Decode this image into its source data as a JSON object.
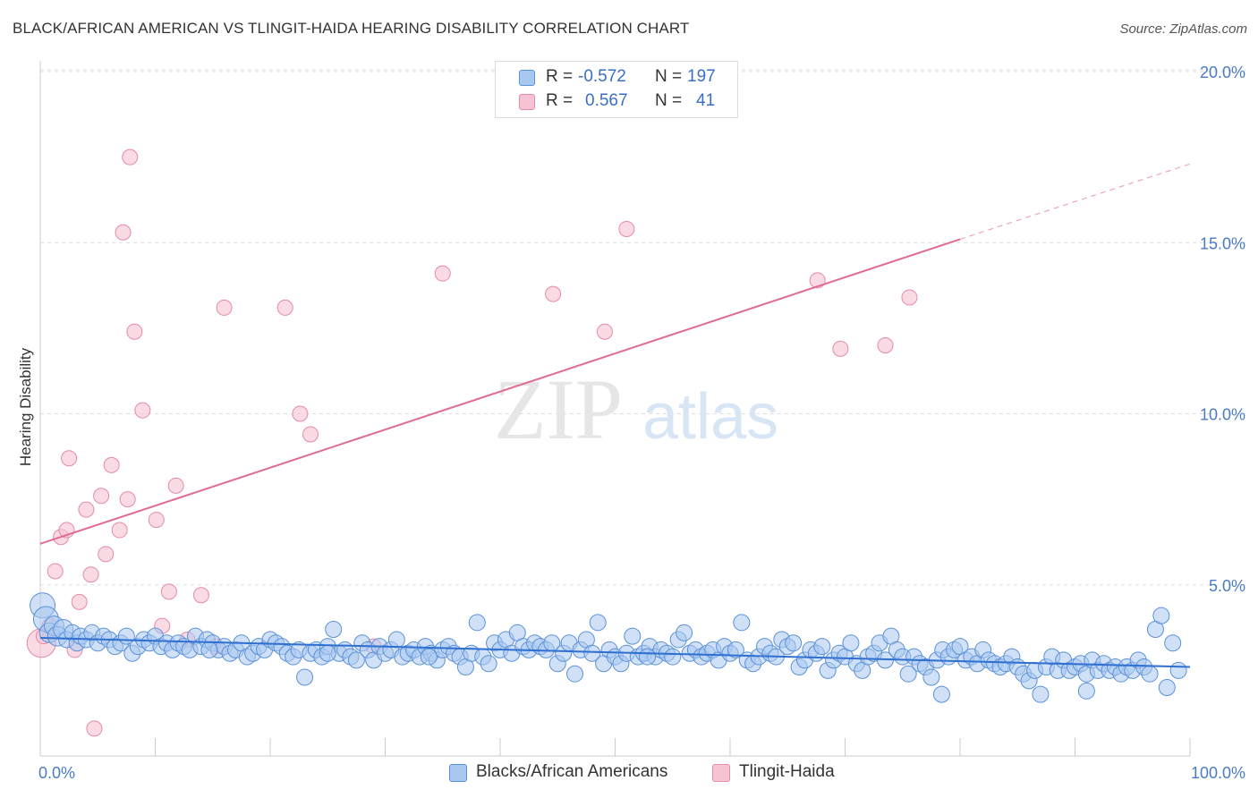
{
  "title": "BLACK/AFRICAN AMERICAN VS TLINGIT-HAIDA HEARING DISABILITY CORRELATION CHART",
  "source": "Source: ZipAtlas.com",
  "watermark": {
    "zip": "ZIP",
    "atlas": "atlas"
  },
  "legend": {
    "rows": [
      {
        "r_label": "R =",
        "r_value": "-0.572",
        "n_label": "N =",
        "n_value": "197"
      },
      {
        "r_label": "R =",
        "r_value": "0.567",
        "n_label": "N =",
        "n_value": "41"
      }
    ]
  },
  "bottom_legend": {
    "items": [
      {
        "label": "Blacks/African Americans"
      },
      {
        "label": "Tlingit-Haida"
      }
    ]
  },
  "colors": {
    "blue_fill": "#a9c8f0",
    "blue_stroke": "#5b91d8",
    "blue_line": "#2f6fd0",
    "pink_fill": "#f6c3d2",
    "pink_stroke": "#e58aa8",
    "pink_line": "#e06b94"
  },
  "chart_data": {
    "type": "scatter",
    "title": "BLACK/AFRICAN AMERICAN VS TLINGIT-HAIDA HEARING DISABILITY CORRELATION CHART",
    "xlabel": "",
    "ylabel": "Hearing Disability",
    "xlim": [
      0,
      100
    ],
    "ylim": [
      0,
      20
    ],
    "x_tick_labels": [
      "0.0%",
      "100.0%"
    ],
    "y_tick_labels": [
      "5.0%",
      "10.0%",
      "15.0%",
      "20.0%"
    ],
    "y_tick_values": [
      5,
      10,
      15,
      20
    ],
    "series": [
      {
        "name": "Blacks/African Americans",
        "R": -0.572,
        "N": 197,
        "trend": {
          "x0": 0,
          "y0": 3.45,
          "x1": 100,
          "y1": 2.6
        },
        "points": [
          [
            0.2,
            4.4
          ],
          [
            0.5,
            4.0
          ],
          [
            0.8,
            3.6
          ],
          [
            1.2,
            3.8
          ],
          [
            1.5,
            3.5
          ],
          [
            2.0,
            3.7
          ],
          [
            2.3,
            3.4
          ],
          [
            2.8,
            3.6
          ],
          [
            3.2,
            3.3
          ],
          [
            3.5,
            3.5
          ],
          [
            4.0,
            3.4
          ],
          [
            4.5,
            3.6
          ],
          [
            5.0,
            3.3
          ],
          [
            5.5,
            3.5
          ],
          [
            6.0,
            3.4
          ],
          [
            6.5,
            3.2
          ],
          [
            7.0,
            3.3
          ],
          [
            7.5,
            3.5
          ],
          [
            8.0,
            3.0
          ],
          [
            8.5,
            3.2
          ],
          [
            9.0,
            3.4
          ],
          [
            9.5,
            3.3
          ],
          [
            10.0,
            3.5
          ],
          [
            10.5,
            3.2
          ],
          [
            11.0,
            3.3
          ],
          [
            11.5,
            3.1
          ],
          [
            12.0,
            3.3
          ],
          [
            12.5,
            3.2
          ],
          [
            13.0,
            3.1
          ],
          [
            13.5,
            3.5
          ],
          [
            14.0,
            3.2
          ],
          [
            14.5,
            3.4
          ],
          [
            15.0,
            3.3
          ],
          [
            15.5,
            3.1
          ],
          [
            16.0,
            3.2
          ],
          [
            16.5,
            3.0
          ],
          [
            17.0,
            3.1
          ],
          [
            17.5,
            3.3
          ],
          [
            18.0,
            2.9
          ],
          [
            18.5,
            3.0
          ],
          [
            19.0,
            3.2
          ],
          [
            19.5,
            3.1
          ],
          [
            20.0,
            3.4
          ],
          [
            20.5,
            3.3
          ],
          [
            21.0,
            3.2
          ],
          [
            21.5,
            3.0
          ],
          [
            22.0,
            2.9
          ],
          [
            22.5,
            3.1
          ],
          [
            23.0,
            2.3
          ],
          [
            23.5,
            3.0
          ],
          [
            24.0,
            3.1
          ],
          [
            24.5,
            2.9
          ],
          [
            25.0,
            3.2
          ],
          [
            25.5,
            3.7
          ],
          [
            26.0,
            3.0
          ],
          [
            26.5,
            3.1
          ],
          [
            27.0,
            2.9
          ],
          [
            27.5,
            2.8
          ],
          [
            28.0,
            3.3
          ],
          [
            28.5,
            3.1
          ],
          [
            29.0,
            2.8
          ],
          [
            29.5,
            3.2
          ],
          [
            30.0,
            3.0
          ],
          [
            30.5,
            3.1
          ],
          [
            31.0,
            3.4
          ],
          [
            31.5,
            2.9
          ],
          [
            32.0,
            3.0
          ],
          [
            32.5,
            3.1
          ],
          [
            33.0,
            2.9
          ],
          [
            33.5,
            3.2
          ],
          [
            34.0,
            3.0
          ],
          [
            34.5,
            2.8
          ],
          [
            35.0,
            3.1
          ],
          [
            35.5,
            3.2
          ],
          [
            36.0,
            3.0
          ],
          [
            36.5,
            2.9
          ],
          [
            37.0,
            2.6
          ],
          [
            37.5,
            3.0
          ],
          [
            38.0,
            3.9
          ],
          [
            38.5,
            2.9
          ],
          [
            39.0,
            2.7
          ],
          [
            39.5,
            3.3
          ],
          [
            40.0,
            3.1
          ],
          [
            40.5,
            3.4
          ],
          [
            41.0,
            3.0
          ],
          [
            41.5,
            3.6
          ],
          [
            42.0,
            3.2
          ],
          [
            42.5,
            3.1
          ],
          [
            43.0,
            3.3
          ],
          [
            43.5,
            3.2
          ],
          [
            44.0,
            3.1
          ],
          [
            44.5,
            3.3
          ],
          [
            45.0,
            2.7
          ],
          [
            45.5,
            3.0
          ],
          [
            46.0,
            3.3
          ],
          [
            46.5,
            2.4
          ],
          [
            47.0,
            3.1
          ],
          [
            47.5,
            3.4
          ],
          [
            48.0,
            3.0
          ],
          [
            48.5,
            3.9
          ],
          [
            49.0,
            2.7
          ],
          [
            49.5,
            3.1
          ],
          [
            50.0,
            2.9
          ],
          [
            50.5,
            2.7
          ],
          [
            51.0,
            3.0
          ],
          [
            51.5,
            3.5
          ],
          [
            52.0,
            2.9
          ],
          [
            52.5,
            3.0
          ],
          [
            53.0,
            3.2
          ],
          [
            53.5,
            2.9
          ],
          [
            54.0,
            3.1
          ],
          [
            54.5,
            3.0
          ],
          [
            55.0,
            2.9
          ],
          [
            55.5,
            3.4
          ],
          [
            56.0,
            3.6
          ],
          [
            56.5,
            3.0
          ],
          [
            57.0,
            3.1
          ],
          [
            57.5,
            2.9
          ],
          [
            58.0,
            3.0
          ],
          [
            58.5,
            3.1
          ],
          [
            59.0,
            2.8
          ],
          [
            59.5,
            3.2
          ],
          [
            60.0,
            3.0
          ],
          [
            60.5,
            3.1
          ],
          [
            61.0,
            3.9
          ],
          [
            61.5,
            2.8
          ],
          [
            62.0,
            2.7
          ],
          [
            62.5,
            2.9
          ],
          [
            63.0,
            3.2
          ],
          [
            63.5,
            3.0
          ],
          [
            64.0,
            2.9
          ],
          [
            64.5,
            3.4
          ],
          [
            65.0,
            3.2
          ],
          [
            65.5,
            3.3
          ],
          [
            66.0,
            2.6
          ],
          [
            66.5,
            2.8
          ],
          [
            67.0,
            3.1
          ],
          [
            67.5,
            3.0
          ],
          [
            68.0,
            3.2
          ],
          [
            68.5,
            2.5
          ],
          [
            69.0,
            2.8
          ],
          [
            69.5,
            3.0
          ],
          [
            70.0,
            2.9
          ],
          [
            70.5,
            3.3
          ],
          [
            71.0,
            2.7
          ],
          [
            71.5,
            2.5
          ],
          [
            72.0,
            2.9
          ],
          [
            72.5,
            3.0
          ],
          [
            73.0,
            3.3
          ],
          [
            73.5,
            2.8
          ],
          [
            74.0,
            3.5
          ],
          [
            74.5,
            3.1
          ],
          [
            75.0,
            2.9
          ],
          [
            75.5,
            2.4
          ],
          [
            76.0,
            2.9
          ],
          [
            76.5,
            2.7
          ],
          [
            77.0,
            2.6
          ],
          [
            77.5,
            2.3
          ],
          [
            78.0,
            2.8
          ],
          [
            78.5,
            3.1
          ],
          [
            79.0,
            2.9
          ],
          [
            79.5,
            3.1
          ],
          [
            80.0,
            3.2
          ],
          [
            80.5,
            2.8
          ],
          [
            81.0,
            2.9
          ],
          [
            81.5,
            2.7
          ],
          [
            82.0,
            3.1
          ],
          [
            82.5,
            2.8
          ],
          [
            83.0,
            2.7
          ],
          [
            83.5,
            2.6
          ],
          [
            84.0,
            2.7
          ],
          [
            84.5,
            2.9
          ],
          [
            85.0,
            2.6
          ],
          [
            85.5,
            2.4
          ],
          [
            86.0,
            2.2
          ],
          [
            86.5,
            2.5
          ],
          [
            87.0,
            1.8
          ],
          [
            87.5,
            2.6
          ],
          [
            88.0,
            2.9
          ],
          [
            88.5,
            2.5
          ],
          [
            89.0,
            2.8
          ],
          [
            89.5,
            2.5
          ],
          [
            90.0,
            2.6
          ],
          [
            90.5,
            2.7
          ],
          [
            91.0,
            2.4
          ],
          [
            91.5,
            2.8
          ],
          [
            92.0,
            2.5
          ],
          [
            92.5,
            2.7
          ],
          [
            93.0,
            2.5
          ],
          [
            93.5,
            2.6
          ],
          [
            94.0,
            2.4
          ],
          [
            94.5,
            2.6
          ],
          [
            95.0,
            2.5
          ],
          [
            95.5,
            2.8
          ],
          [
            96.0,
            2.6
          ],
          [
            96.5,
            2.4
          ],
          [
            97.0,
            3.7
          ],
          [
            97.5,
            4.1
          ],
          [
            98.0,
            2.0
          ],
          [
            98.5,
            3.3
          ],
          [
            99.0,
            2.5
          ],
          [
            78.4,
            1.8
          ],
          [
            91.0,
            1.9
          ],
          [
            25.0,
            3.0
          ],
          [
            33.8,
            2.9
          ],
          [
            52.8,
            2.9
          ],
          [
            14.7,
            3.1
          ]
        ]
      },
      {
        "name": "Tlingit-Haida",
        "R": 0.567,
        "N": 41,
        "trend": {
          "x0": 0,
          "y0": 6.2,
          "x1": 80,
          "y1": 15.1,
          "dash_to_x": 100,
          "dash_to_y": 17.3
        },
        "points": [
          [
            0.1,
            3.3
          ],
          [
            0.3,
            3.5
          ],
          [
            0.8,
            3.8
          ],
          [
            1.3,
            5.4
          ],
          [
            1.8,
            6.4
          ],
          [
            2.3,
            6.6
          ],
          [
            2.5,
            8.7
          ],
          [
            3.0,
            3.1
          ],
          [
            3.4,
            4.5
          ],
          [
            4.0,
            7.2
          ],
          [
            4.4,
            5.3
          ],
          [
            4.7,
            0.8
          ],
          [
            5.3,
            7.6
          ],
          [
            5.7,
            5.9
          ],
          [
            6.2,
            8.5
          ],
          [
            6.9,
            6.6
          ],
          [
            7.2,
            15.3
          ],
          [
            7.6,
            7.5
          ],
          [
            7.8,
            17.5
          ],
          [
            8.2,
            12.4
          ],
          [
            8.9,
            10.1
          ],
          [
            10.1,
            6.9
          ],
          [
            10.6,
            3.8
          ],
          [
            11.2,
            4.8
          ],
          [
            11.8,
            7.9
          ],
          [
            12.8,
            3.4
          ],
          [
            14.0,
            4.7
          ],
          [
            15.3,
            3.2
          ],
          [
            16.0,
            13.1
          ],
          [
            21.3,
            13.1
          ],
          [
            22.6,
            10.0
          ],
          [
            23.5,
            9.4
          ],
          [
            29.0,
            3.2
          ],
          [
            35.0,
            14.1
          ],
          [
            44.6,
            13.5
          ],
          [
            49.1,
            12.4
          ],
          [
            51.0,
            15.4
          ],
          [
            67.6,
            13.9
          ],
          [
            69.6,
            11.9
          ],
          [
            73.5,
            12.0
          ],
          [
            75.6,
            13.4
          ]
        ]
      }
    ]
  }
}
